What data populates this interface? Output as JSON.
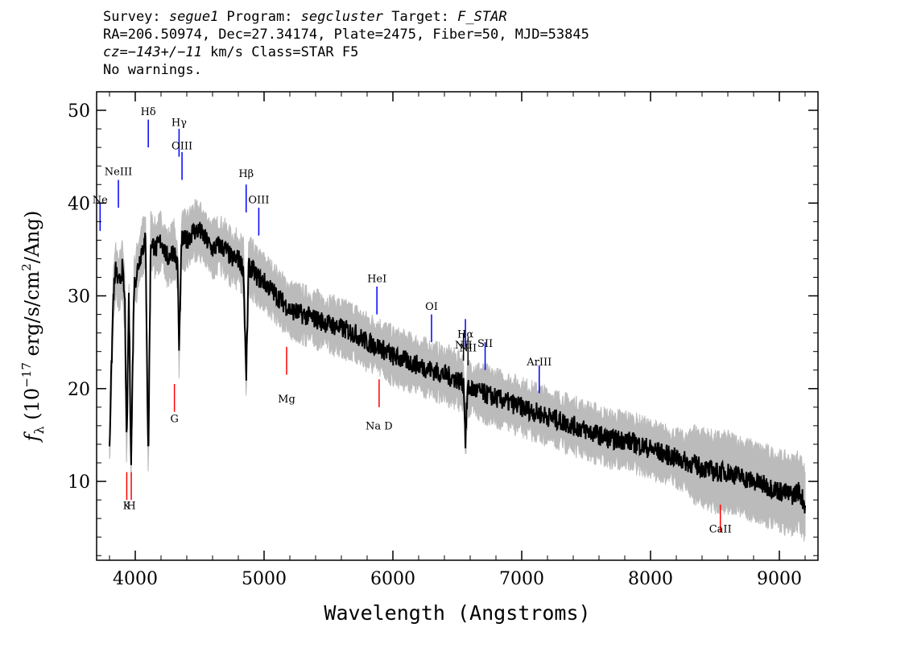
{
  "header": {
    "line1_prefix": "Survey: ",
    "survey": "segue1",
    "program_prefix": " Program: ",
    "program": "segcluster",
    "target_prefix": " Target: ",
    "target": "F_STAR",
    "line2": "RA=206.50974, Dec=27.34174, Plate=2475, Fiber=50, MJD=53845",
    "line3_prefix": "cz=",
    "cz": "−143+/−11",
    "line3_suffix": " km/s Class=STAR F5",
    "line4": "No warnings."
  },
  "chart_data": {
    "type": "line",
    "xlabel": "Wavelength (Angstroms)",
    "ylabel_main": "f",
    "ylabel_sub": "λ",
    "ylabel_rest": " (10",
    "ylabel_exp": "−17",
    "ylabel_units": " erg/s/cm",
    "ylabel_units_exp": "2",
    "ylabel_end": "/Ang)",
    "xlim": [
      3700,
      9300
    ],
    "ylim": [
      1.5,
      52
    ],
    "xticks": [
      4000,
      5000,
      6000,
      7000,
      8000,
      9000
    ],
    "yticks": [
      10,
      20,
      30,
      40,
      50
    ],
    "grid": false,
    "series": [
      {
        "color": "#000000",
        "noise_color": "#bbbbbb",
        "x": [
          3800,
          3830,
          3850,
          3870,
          3900,
          3920,
          3933,
          3950,
          3968,
          3990,
          4020,
          4050,
          4080,
          4101,
          4120,
          4160,
          4200,
          4250,
          4300,
          4330,
          4340,
          4360,
          4400,
          4450,
          4500,
          4550,
          4600,
          4650,
          4700,
          4750,
          4800,
          4840,
          4861,
          4880,
          4900,
          4950,
          5000,
          5100,
          5200,
          5300,
          5400,
          5500,
          5600,
          5700,
          5800,
          5890,
          5950,
          6000,
          6100,
          6200,
          6300,
          6400,
          6500,
          6550,
          6563,
          6580,
          6600,
          6700,
          6800,
          6900,
          7000,
          7100,
          7200,
          7300,
          7400,
          7500,
          7600,
          7700,
          7800,
          7900,
          8000,
          8100,
          8200,
          8300,
          8400,
          8500,
          8600,
          8700,
          8800,
          8900,
          9000,
          9100,
          9150,
          9200
        ],
        "y": [
          14,
          30,
          33,
          31,
          33,
          29,
          13,
          30,
          12,
          31,
          33,
          35,
          36,
          12,
          36,
          35,
          36,
          34,
          35,
          33,
          24,
          36,
          36,
          37,
          37,
          36,
          35,
          35.5,
          35,
          34,
          34,
          33,
          21,
          33,
          33,
          32,
          31.5,
          30,
          28.5,
          28,
          27.5,
          27,
          26.5,
          26,
          25,
          24.5,
          24,
          23.5,
          23,
          22.5,
          22,
          21.5,
          21,
          20.5,
          14.5,
          20,
          20,
          19.5,
          19,
          18.5,
          18,
          17.5,
          17,
          16.5,
          16,
          15.5,
          15,
          14.5,
          14.5,
          14,
          13.5,
          13,
          12.5,
          12,
          11.5,
          11,
          11,
          10.5,
          10,
          9.5,
          9,
          8.5,
          9,
          7.5
        ]
      }
    ],
    "annotations": [
      {
        "label": "Ne",
        "wavelength": 3727,
        "color": "#0000ff",
        "y": 38.5,
        "text_y": 40
      },
      {
        "label": "NeIII",
        "wavelength": 3869,
        "color": "#0000ff",
        "y": 41,
        "text_y": 43
      },
      {
        "label": "Hδ",
        "wavelength": 4101,
        "color": "#0000ff",
        "y": 47.5,
        "text_y": 49.5
      },
      {
        "label": "Hγ",
        "wavelength": 4340,
        "color": "#0000ff",
        "y": 46.5,
        "text_y": 48.3
      },
      {
        "label": "OIII",
        "wavelength": 4363,
        "color": "#0000ff",
        "y": 44,
        "text_y": 45.8
      },
      {
        "label": "Hβ",
        "wavelength": 4861,
        "color": "#0000ff",
        "y": 40.5,
        "text_y": 42.8
      },
      {
        "label": "OIII",
        "wavelength": 4959,
        "color": "#0000ff",
        "y": 38,
        "text_y": 40
      },
      {
        "label": "HeI",
        "wavelength": 5876,
        "color": "#0000ff",
        "y": 29.5,
        "text_y": 31.5
      },
      {
        "label": "OI",
        "wavelength": 6300,
        "color": "#0000ff",
        "y": 26.5,
        "text_y": 28.5
      },
      {
        "label": "NII",
        "wavelength": 6548,
        "color": "#000000",
        "y": 24.5,
        "text_y": 24.3
      },
      {
        "label": "Hα",
        "wavelength": 6563,
        "color": "#0000ff",
        "y": 26,
        "text_y": 25.5
      },
      {
        "label": "NII",
        "wavelength": 6583,
        "color": "#000000",
        "y": 24,
        "text_y": 24
      },
      {
        "label": "SII",
        "wavelength": 6716,
        "color": "#0000ff",
        "y": 23.5,
        "text_y": 24.5
      },
      {
        "label": "ArIII",
        "wavelength": 7136,
        "color": "#0000ff",
        "y": 21,
        "text_y": 22.5
      },
      {
        "label": "Mg",
        "wavelength": 5175,
        "color": "#ff0000",
        "y": 23,
        "text_y": 18.5
      },
      {
        "label": "G",
        "wavelength": 4304,
        "color": "#ff0000",
        "y": 19,
        "text_y": 16.4
      },
      {
        "label": "Na D",
        "wavelength": 5893,
        "color": "#ff0000",
        "y": 19.5,
        "text_y": 15.6
      },
      {
        "label": "K",
        "wavelength": 3934,
        "color": "#ff0000",
        "y": 9.5,
        "text_y": 7
      },
      {
        "label": "H",
        "wavelength": 3969,
        "color": "#ff0000",
        "y": 9.5,
        "text_y": 7
      },
      {
        "label": "CaII",
        "wavelength": 8542,
        "color": "#ff0000",
        "y": 6,
        "text_y": 4.5
      }
    ]
  }
}
